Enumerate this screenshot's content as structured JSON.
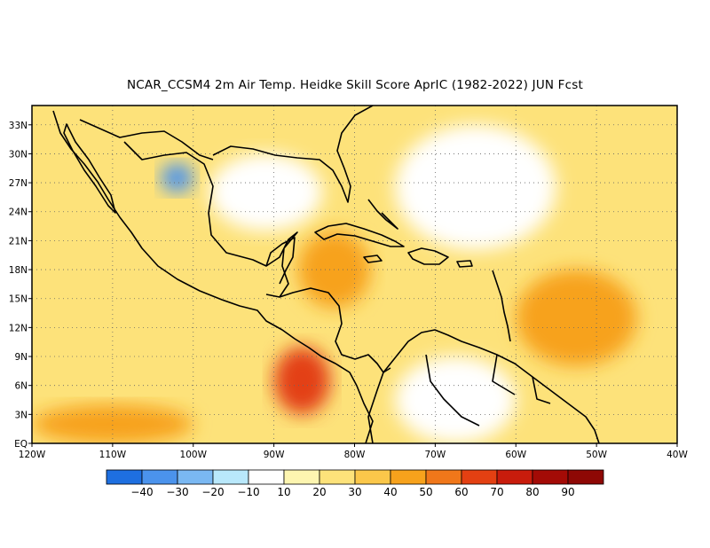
{
  "title": "NCAR_CCSM4  2m Air Temp. Heidke Skill Score AprIC (1982-2022) JUN Fcst",
  "map": {
    "lon_range": [
      -120,
      -40
    ],
    "lat_range": [
      0,
      35
    ],
    "lat_ticks": [
      "33N",
      "30N",
      "27N",
      "24N",
      "21N",
      "18N",
      "15N",
      "12N",
      "9N",
      "6N",
      "3N",
      "EQ"
    ],
    "lat_tick_values": [
      33,
      30,
      27,
      24,
      21,
      18,
      15,
      12,
      9,
      6,
      3,
      0
    ],
    "lon_ticks": [
      "120W",
      "110W",
      "100W",
      "90W",
      "80W",
      "70W",
      "60W",
      "50W",
      "40W"
    ],
    "lon_tick_values": [
      -120,
      -110,
      -100,
      -90,
      -80,
      -70,
      -60,
      -50,
      -40
    ],
    "grid": "dotted",
    "coastline_color": "#000000"
  },
  "colorbar": {
    "labels": [
      "-40",
      "-30",
      "-20",
      "-10",
      "10",
      "20",
      "30",
      "40",
      "50",
      "60",
      "70",
      "80",
      "90"
    ],
    "colors": [
      "#1e6fe0",
      "#4b93ec",
      "#7ab8f2",
      "#b9e8fb",
      "#ffffff",
      "#fdf5b0",
      "#fde27a",
      "#fbc74a",
      "#f7a21c",
      "#f0771a",
      "#e34012",
      "#c81c0c",
      "#a30b06"
    ]
  },
  "field_regions": [
    {
      "name": "background",
      "lon": [
        -120,
        -40
      ],
      "lat": [
        0,
        35
      ],
      "level": 30
    },
    {
      "name": "pacific-south-band",
      "lon": [
        -120,
        -100
      ],
      "lat": [
        0,
        4
      ],
      "level": 50
    },
    {
      "name": "central-america-pacific-max",
      "lon": [
        -90,
        -83
      ],
      "lat": [
        3,
        10
      ],
      "level": 70
    },
    {
      "name": "caribbean-west",
      "lon": [
        -87,
        -78
      ],
      "lat": [
        14,
        22
      ],
      "level": 50
    },
    {
      "name": "atlantic-east",
      "lon": [
        -60,
        -45
      ],
      "lat": [
        8,
        18
      ],
      "level": 50
    },
    {
      "name": "gulf-of-mexico",
      "lon": [
        -98,
        -84
      ],
      "lat": [
        22,
        30
      ],
      "level": 10
    },
    {
      "name": "south-america-interior",
      "lon": [
        -75,
        -60
      ],
      "lat": [
        0,
        9
      ],
      "level": 10
    },
    {
      "name": "mexico-north-negative",
      "lon": [
        -104,
        -100
      ],
      "lat": [
        26,
        29
      ],
      "level": -30
    },
    {
      "name": "atlantic-north-neutral",
      "lon": [
        -75,
        -55
      ],
      "lat": [
        20,
        33
      ],
      "level": 10
    }
  ]
}
